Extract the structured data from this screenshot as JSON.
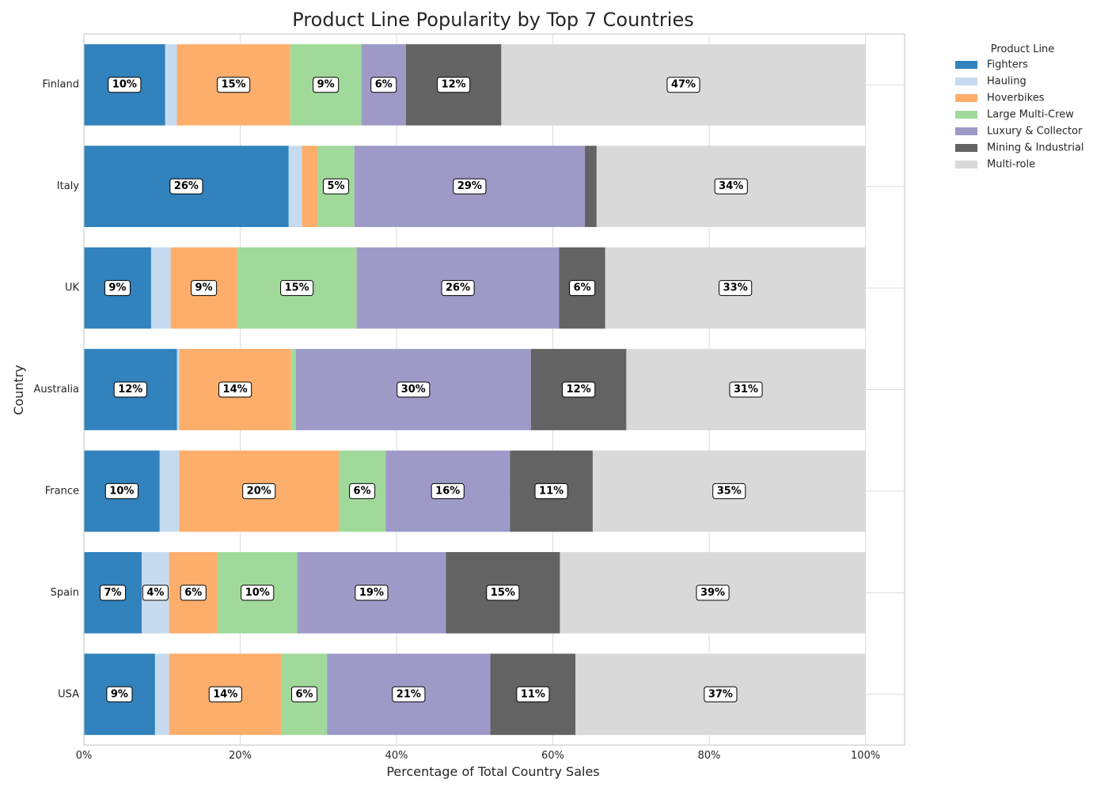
{
  "chart_data": {
    "type": "bar",
    "orientation": "horizontal",
    "stacked": true,
    "title": "Product Line Popularity by Top 7 Countries",
    "xlabel": "Percentage of Total Country Sales",
    "ylabel": "Country",
    "xlim": [
      0,
      1.05
    ],
    "x_ticks": [
      0,
      0.2,
      0.4,
      0.6,
      0.8,
      1.0
    ],
    "x_tick_labels": [
      "0%",
      "20%",
      "40%",
      "60%",
      "80%",
      "100%"
    ],
    "grid": true,
    "legend": {
      "title": "Product Line",
      "placement": "outside-top-right"
    },
    "categories": [
      "Finland",
      "Italy",
      "UK",
      "Australia",
      "France",
      "Spain",
      "USA"
    ],
    "series": [
      {
        "name": "Fighters",
        "color": "#3182bd",
        "values": [
          0.104,
          0.262,
          0.086,
          0.119,
          0.097,
          0.074,
          0.091
        ],
        "labels": [
          "10%",
          "26%",
          "9%",
          "12%",
          "10%",
          "7%",
          "9%"
        ]
      },
      {
        "name": "Hauling",
        "color": "#c6dbef",
        "values": [
          0.015,
          0.017,
          0.025,
          0.003,
          0.025,
          0.035,
          0.018
        ],
        "labels": [
          "",
          "",
          "",
          "",
          "",
          "4%",
          ""
        ]
      },
      {
        "name": "Hoverbikes",
        "color": "#fdae6b",
        "values": [
          0.145,
          0.02,
          0.085,
          0.143,
          0.204,
          0.062,
          0.144
        ],
        "labels": [
          "15%",
          "",
          "9%",
          "14%",
          "20%",
          "6%",
          "14%"
        ]
      },
      {
        "name": "Large Multi-Crew",
        "color": "#a1d99b",
        "values": [
          0.091,
          0.047,
          0.153,
          0.006,
          0.06,
          0.102,
          0.058
        ],
        "labels": [
          "9%",
          "5%",
          "15%",
          "",
          "6%",
          "10%",
          "6%"
        ]
      },
      {
        "name": "Luxury & Collector",
        "color": "#9e9ac8",
        "values": [
          0.057,
          0.295,
          0.259,
          0.301,
          0.159,
          0.19,
          0.209
        ],
        "labels": [
          "6%",
          "29%",
          "26%",
          "30%",
          "16%",
          "19%",
          "21%"
        ]
      },
      {
        "name": "Mining & Industrial",
        "color": "#636363",
        "values": [
          0.122,
          0.015,
          0.059,
          0.122,
          0.106,
          0.146,
          0.109
        ],
        "labels": [
          "12%",
          "",
          "6%",
          "12%",
          "11%",
          "15%",
          "11%"
        ]
      },
      {
        "name": "Multi-role",
        "color": "#d9d9d9",
        "values": [
          0.466,
          0.344,
          0.333,
          0.306,
          0.349,
          0.391,
          0.371
        ],
        "labels": [
          "47%",
          "34%",
          "33%",
          "31%",
          "35%",
          "39%",
          "37%"
        ]
      }
    ]
  }
}
